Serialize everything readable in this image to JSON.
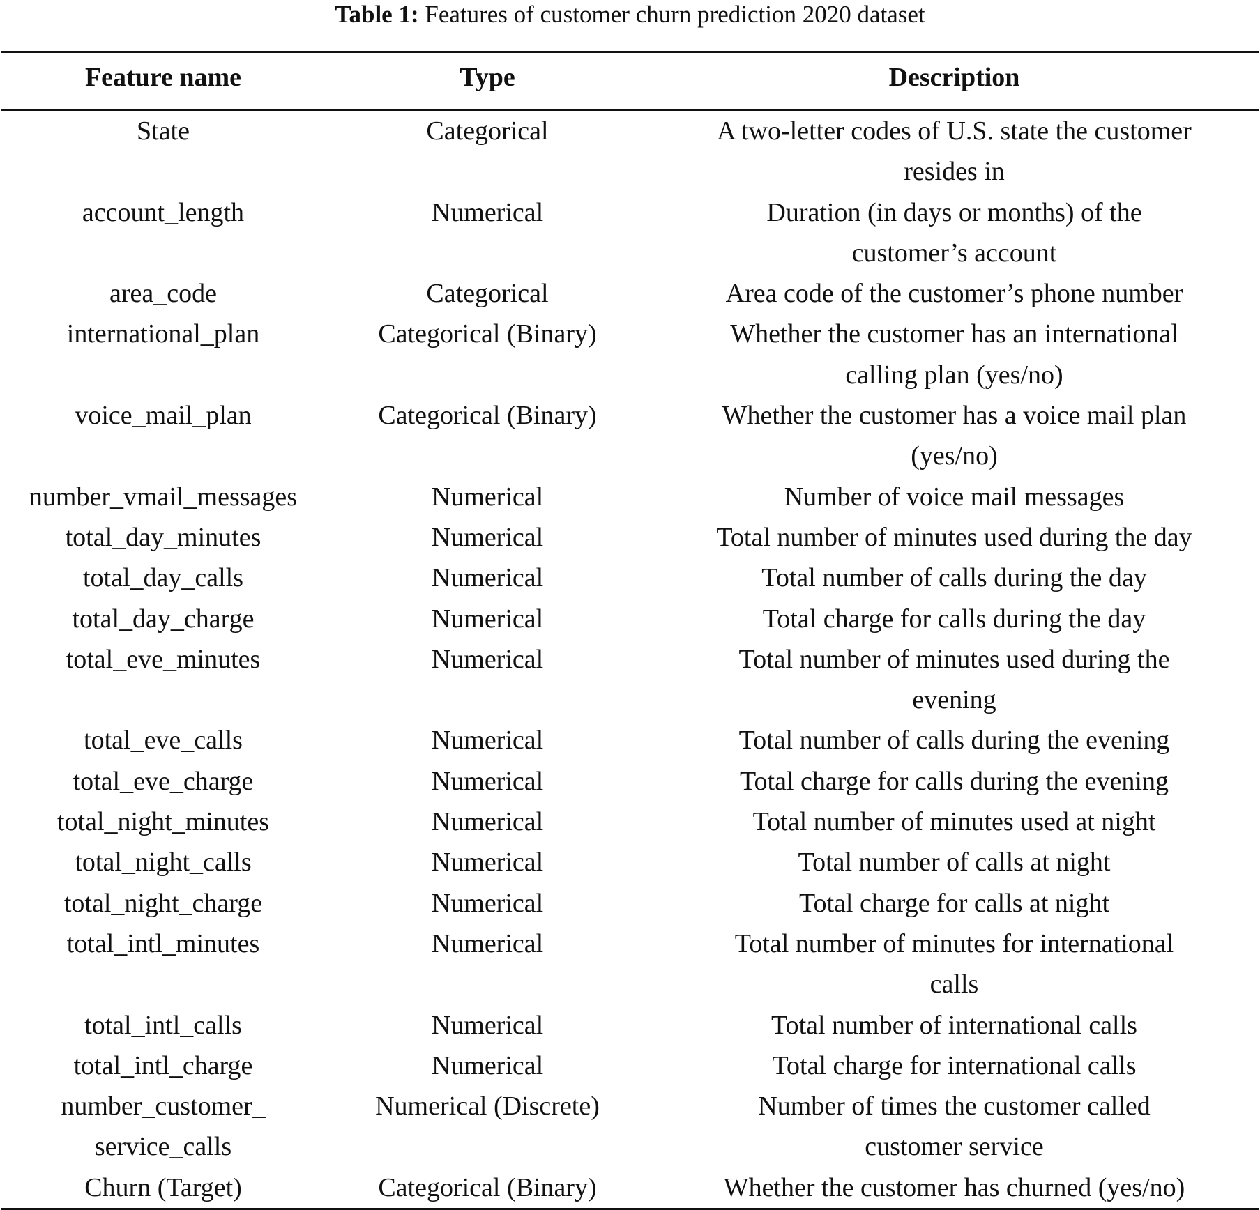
{
  "caption": {
    "label": "Table 1:",
    "text": " Features of customer churn prediction 2020 dataset"
  },
  "headers": [
    "Feature name",
    "Type",
    "Description"
  ],
  "rows": [
    [
      "State",
      "Categorical",
      "A two-letter codes of U.S. state the customer\nresides in"
    ],
    [
      "account_length",
      "Numerical",
      "Duration (in days or months) of the\ncustomer’s account"
    ],
    [
      "area_code",
      "Categorical",
      "Area code of the customer’s phone number"
    ],
    [
      "international_plan",
      "Categorical (Binary)",
      "Whether the customer has an international\ncalling plan (yes/no)"
    ],
    [
      "voice_mail_plan",
      "Categorical (Binary)",
      "Whether the customer has a voice mail plan\n(yes/no)"
    ],
    [
      "number_vmail_messages",
      "Numerical",
      "Number of voice mail messages"
    ],
    [
      "total_day_minutes",
      "Numerical",
      "Total number of minutes used during the day"
    ],
    [
      "total_day_calls",
      "Numerical",
      "Total number of calls during the day"
    ],
    [
      "total_day_charge",
      "Numerical",
      "Total charge for calls during the day"
    ],
    [
      "total_eve_minutes",
      "Numerical",
      "Total number of minutes used during the\nevening"
    ],
    [
      "total_eve_calls",
      "Numerical",
      "Total number of calls during the evening"
    ],
    [
      "total_eve_charge",
      "Numerical",
      "Total charge for calls during the evening"
    ],
    [
      "total_night_minutes",
      "Numerical",
      "Total number of minutes used at night"
    ],
    [
      "total_night_calls",
      "Numerical",
      "Total number of calls at night"
    ],
    [
      "total_night_charge",
      "Numerical",
      "Total charge for calls at night"
    ],
    [
      "total_intl_minutes",
      "Numerical",
      "Total number of minutes for international\ncalls"
    ],
    [
      "total_intl_calls",
      "Numerical",
      "Total number of international calls"
    ],
    [
      "total_intl_charge",
      "Numerical",
      "Total charge for international calls"
    ],
    [
      "number_customer_\nservice_calls",
      "Numerical (Discrete)",
      "Number of times the customer called\ncustomer service"
    ],
    [
      "Churn (Target)",
      "Categorical (Binary)",
      "Whether the customer has churned (yes/no)"
    ]
  ]
}
